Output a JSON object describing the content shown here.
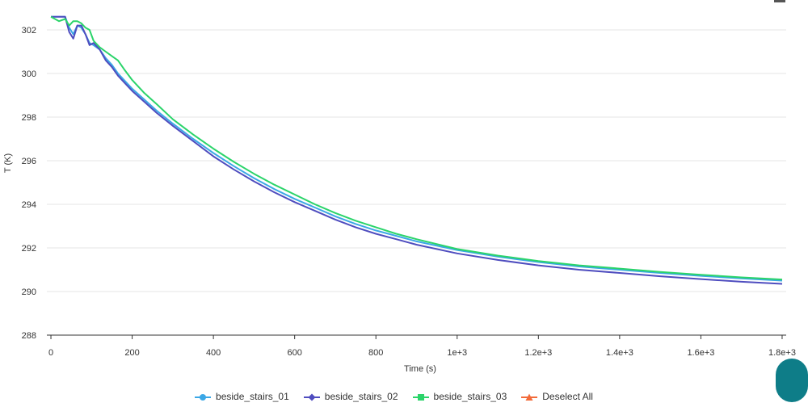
{
  "chart_data": {
    "type": "line",
    "title": "",
    "xlabel": "Time (s)",
    "ylabel": "T (K)",
    "xlim": [
      -10,
      1810
    ],
    "ylim": [
      288,
      303
    ],
    "xticks": [
      0,
      200,
      400,
      600,
      800,
      1000,
      1200,
      1400,
      1600,
      1800
    ],
    "xtick_labels": [
      "0",
      "200",
      "400",
      "600",
      "800",
      "1e+3",
      "1.2e+3",
      "1.4e+3",
      "1.6e+3",
      "1.8e+3"
    ],
    "yticks": [
      288,
      290,
      292,
      294,
      296,
      298,
      300,
      302
    ],
    "ytick_labels": [
      "288",
      "290",
      "292",
      "294",
      "296",
      "298",
      "300",
      "302"
    ],
    "grid": true,
    "legend_position": "bottom-center",
    "series": [
      {
        "name": "beside_stairs_01",
        "color": "#3ba7e6",
        "marker": "circle",
        "x": [
          0,
          20,
          35,
          45,
          55,
          65,
          75,
          85,
          95,
          105,
          120,
          135,
          150,
          165,
          180,
          200,
          230,
          260,
          300,
          350,
          400,
          450,
          500,
          550,
          600,
          650,
          700,
          750,
          800,
          850,
          900,
          1000,
          1100,
          1200,
          1300,
          1400,
          1500,
          1600,
          1700,
          1800
        ],
        "y": [
          302.6,
          302.6,
          302.6,
          302.1,
          301.8,
          302.2,
          302.1,
          301.8,
          301.4,
          301.3,
          301.1,
          300.7,
          300.4,
          300.0,
          299.7,
          299.3,
          298.8,
          298.3,
          297.7,
          297.0,
          296.35,
          295.75,
          295.2,
          294.7,
          294.25,
          293.85,
          293.45,
          293.1,
          292.8,
          292.55,
          292.3,
          291.9,
          291.6,
          291.35,
          291.15,
          291.0,
          290.85,
          290.72,
          290.6,
          290.5
        ]
      },
      {
        "name": "beside_stairs_02",
        "color": "#4f4dbf",
        "marker": "diamond",
        "x": [
          0,
          20,
          35,
          45,
          55,
          65,
          75,
          85,
          95,
          105,
          120,
          135,
          150,
          165,
          180,
          200,
          230,
          260,
          300,
          350,
          400,
          450,
          500,
          550,
          600,
          650,
          700,
          750,
          800,
          850,
          900,
          1000,
          1100,
          1200,
          1300,
          1400,
          1500,
          1600,
          1700,
          1800
        ],
        "y": [
          302.6,
          302.6,
          302.6,
          301.9,
          301.6,
          302.2,
          302.2,
          301.8,
          301.3,
          301.4,
          301.1,
          300.6,
          300.3,
          299.9,
          299.6,
          299.2,
          298.7,
          298.2,
          297.6,
          296.9,
          296.2,
          295.6,
          295.05,
          294.55,
          294.1,
          293.7,
          293.3,
          292.95,
          292.65,
          292.4,
          292.15,
          291.75,
          291.45,
          291.2,
          291.0,
          290.85,
          290.7,
          290.57,
          290.45,
          290.35
        ]
      },
      {
        "name": "beside_stairs_03",
        "color": "#2bd46a",
        "marker": "square",
        "x": [
          0,
          20,
          35,
          45,
          55,
          65,
          75,
          85,
          95,
          105,
          120,
          135,
          150,
          165,
          180,
          200,
          230,
          260,
          300,
          350,
          400,
          450,
          500,
          550,
          600,
          650,
          700,
          750,
          800,
          850,
          900,
          1000,
          1100,
          1200,
          1300,
          1400,
          1500,
          1600,
          1700,
          1800
        ],
        "y": [
          302.6,
          302.4,
          302.5,
          302.2,
          302.4,
          302.4,
          302.3,
          302.1,
          302.0,
          301.5,
          301.2,
          301.0,
          300.8,
          300.6,
          300.2,
          299.7,
          299.1,
          298.6,
          297.9,
          297.2,
          296.55,
          295.95,
          295.4,
          294.9,
          294.45,
          294.0,
          293.6,
          293.25,
          292.95,
          292.65,
          292.4,
          291.95,
          291.65,
          291.4,
          291.2,
          291.05,
          290.9,
          290.77,
          290.65,
          290.55
        ]
      }
    ],
    "legend": [
      {
        "label": "beside_stairs_01",
        "color": "#3ba7e6",
        "marker": "circle"
      },
      {
        "label": "beside_stairs_02",
        "color": "#4f4dbf",
        "marker": "diamond"
      },
      {
        "label": "beside_stairs_03",
        "color": "#2bd46a",
        "marker": "square"
      },
      {
        "label": "Deselect All",
        "color": "#f26b3a",
        "marker": "triangle"
      }
    ]
  }
}
